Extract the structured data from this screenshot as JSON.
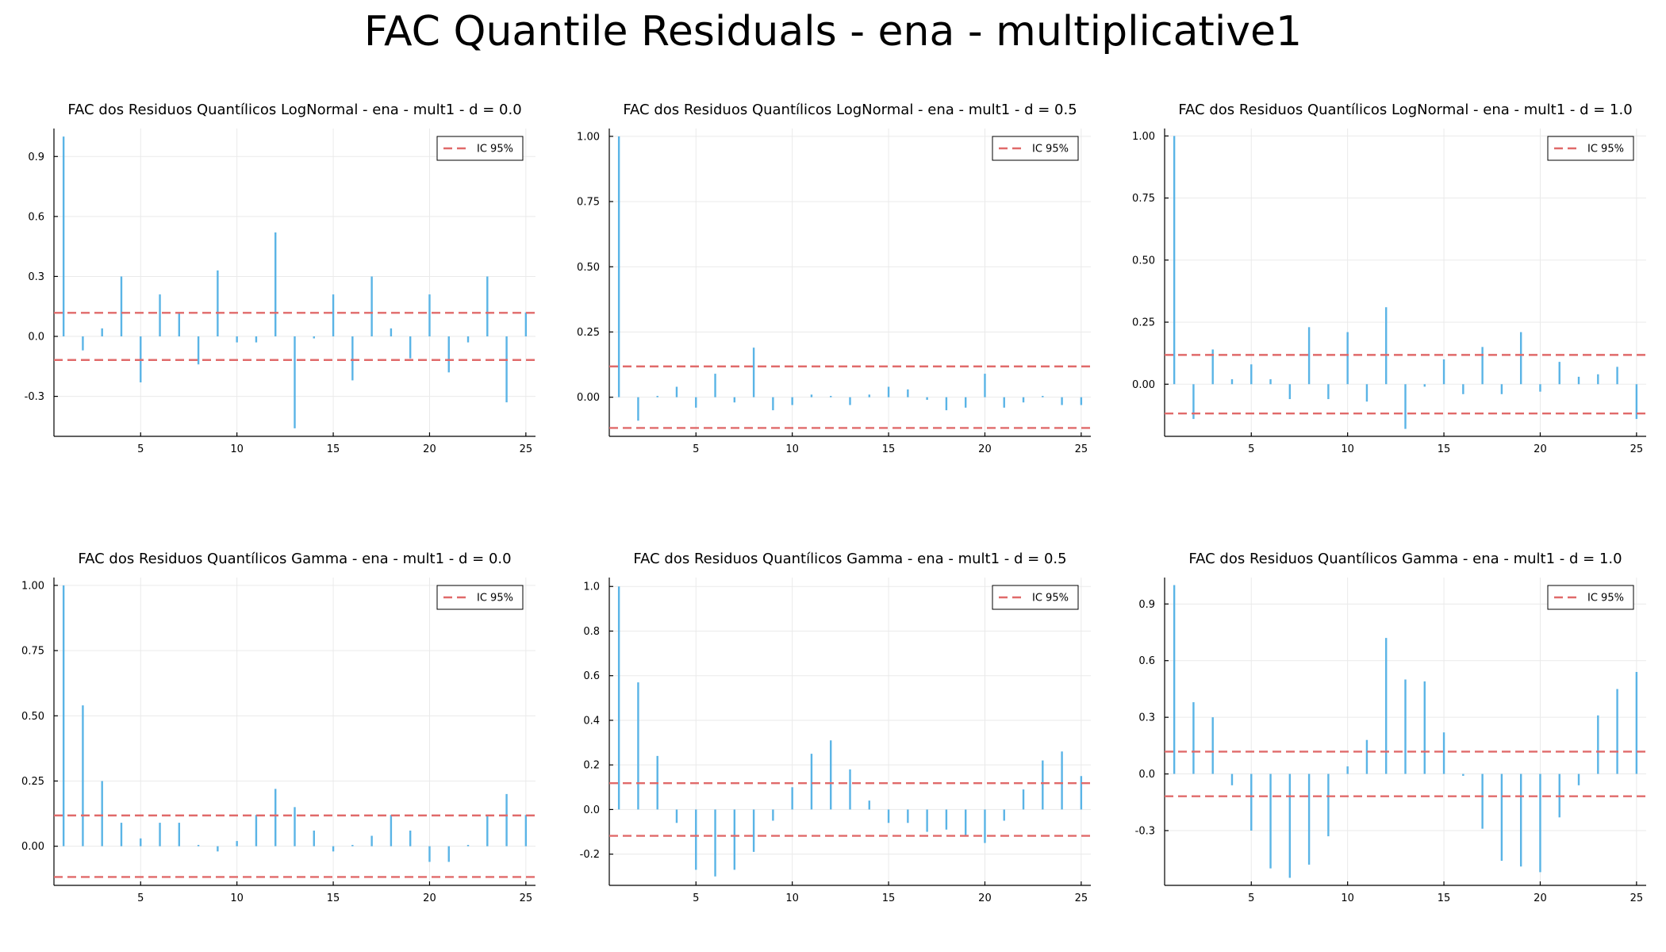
{
  "title": "FAC Quantile Residuals - ena - multiplicative1",
  "chart_data": [
    {
      "type": "bar",
      "title": "FAC dos Residuos Quantílicos LogNormal - ena - mult1 - d = 0.0",
      "legend": "IC 95%",
      "legend_position": "top-right",
      "x": [
        1,
        2,
        3,
        4,
        5,
        6,
        7,
        8,
        9,
        10,
        11,
        12,
        13,
        14,
        15,
        16,
        17,
        18,
        19,
        20,
        21,
        22,
        23,
        24,
        25
      ],
      "values": [
        1.0,
        -0.07,
        0.04,
        0.3,
        -0.23,
        0.21,
        0.12,
        -0.14,
        0.33,
        -0.03,
        -0.03,
        0.52,
        -0.46,
        -0.01,
        0.21,
        -0.22,
        0.3,
        0.04,
        -0.11,
        0.21,
        -0.18,
        -0.03,
        0.3,
        -0.33,
        0.12
      ],
      "ci": 0.118,
      "ylim": [
        -0.5,
        1.04
      ],
      "yticks": [
        -0.3,
        0.0,
        0.3,
        0.6,
        0.9
      ],
      "ytick_labels": [
        "-0.3",
        "0.0",
        "0.3",
        "0.6",
        "0.9"
      ],
      "xlim": [
        0.5,
        25.5
      ],
      "xticks": [
        5,
        10,
        15,
        20,
        25
      ]
    },
    {
      "type": "bar",
      "title": "FAC dos Residuos Quantílicos LogNormal - ena - mult1 - d = 0.5",
      "legend": "IC 95%",
      "legend_position": "top-right",
      "x": [
        1,
        2,
        3,
        4,
        5,
        6,
        7,
        8,
        9,
        10,
        11,
        12,
        13,
        14,
        15,
        16,
        17,
        18,
        19,
        20,
        21,
        22,
        23,
        24,
        25
      ],
      "values": [
        1.0,
        -0.09,
        0.005,
        0.04,
        -0.04,
        0.09,
        -0.02,
        0.19,
        -0.05,
        -0.03,
        0.01,
        0.005,
        -0.03,
        0.01,
        0.04,
        0.03,
        -0.01,
        -0.05,
        -0.04,
        0.09,
        -0.04,
        -0.02,
        0.005,
        -0.03,
        -0.03
      ],
      "ci": 0.118,
      "ylim": [
        -0.15,
        1.03
      ],
      "yticks": [
        0.0,
        0.25,
        0.5,
        0.75,
        1.0
      ],
      "ytick_labels": [
        "0.00",
        "0.25",
        "0.50",
        "0.75",
        "1.00"
      ],
      "xlim": [
        0.5,
        25.5
      ],
      "xticks": [
        5,
        10,
        15,
        20,
        25
      ]
    },
    {
      "type": "bar",
      "title": "FAC dos Residuos Quantílicos LogNormal - ena - mult1 - d = 1.0",
      "legend": "IC 95%",
      "legend_position": "top-right",
      "x": [
        1,
        2,
        3,
        4,
        5,
        6,
        7,
        8,
        9,
        10,
        11,
        12,
        13,
        14,
        15,
        16,
        17,
        18,
        19,
        20,
        21,
        22,
        23,
        24,
        25
      ],
      "values": [
        1.0,
        -0.14,
        0.14,
        0.02,
        0.08,
        0.02,
        -0.06,
        0.23,
        -0.06,
        0.21,
        -0.07,
        0.31,
        -0.18,
        -0.01,
        0.1,
        -0.04,
        0.15,
        -0.04,
        0.21,
        -0.03,
        0.09,
        0.03,
        0.04,
        0.07,
        -0.14
      ],
      "ci": 0.118,
      "ylim": [
        -0.21,
        1.03
      ],
      "yticks": [
        0.0,
        0.25,
        0.5,
        0.75,
        1.0
      ],
      "ytick_labels": [
        "0.00",
        "0.25",
        "0.50",
        "0.75",
        "1.00"
      ],
      "xlim": [
        0.5,
        25.5
      ],
      "xticks": [
        5,
        10,
        15,
        20,
        25
      ]
    },
    {
      "type": "bar",
      "title": "FAC dos Residuos Quantílicos Gamma - ena - mult1 - d = 0.0",
      "legend": "IC 95%",
      "legend_position": "top-right",
      "x": [
        1,
        2,
        3,
        4,
        5,
        6,
        7,
        8,
        9,
        10,
        11,
        12,
        13,
        14,
        15,
        16,
        17,
        18,
        19,
        20,
        21,
        22,
        23,
        24,
        25
      ],
      "values": [
        1.0,
        0.54,
        0.25,
        0.09,
        0.03,
        0.09,
        0.09,
        0.005,
        -0.02,
        0.02,
        0.12,
        0.22,
        0.15,
        0.06,
        -0.02,
        0.005,
        0.04,
        0.12,
        0.06,
        -0.06,
        -0.06,
        0.005,
        0.12,
        0.2,
        0.12
      ],
      "ci": 0.118,
      "ylim": [
        -0.15,
        1.03
      ],
      "yticks": [
        0.0,
        0.25,
        0.5,
        0.75,
        1.0
      ],
      "ytick_labels": [
        "0.00",
        "0.25",
        "0.50",
        "0.75",
        "1.00"
      ],
      "xlim": [
        0.5,
        25.5
      ],
      "xticks": [
        5,
        10,
        15,
        20,
        25
      ]
    },
    {
      "type": "bar",
      "title": "FAC dos Residuos Quantílicos Gamma - ena - mult1 - d = 0.5",
      "legend": "IC 95%",
      "legend_position": "top-right",
      "x": [
        1,
        2,
        3,
        4,
        5,
        6,
        7,
        8,
        9,
        10,
        11,
        12,
        13,
        14,
        15,
        16,
        17,
        18,
        19,
        20,
        21,
        22,
        23,
        24,
        25
      ],
      "values": [
        1.0,
        0.57,
        0.24,
        -0.06,
        -0.27,
        -0.3,
        -0.27,
        -0.19,
        -0.05,
        0.1,
        0.25,
        0.31,
        0.18,
        0.04,
        -0.06,
        -0.06,
        -0.1,
        -0.09,
        -0.12,
        -0.15,
        -0.05,
        0.09,
        0.22,
        0.26,
        0.15
      ],
      "ci": 0.118,
      "ylim": [
        -0.34,
        1.04
      ],
      "yticks": [
        -0.2,
        0.0,
        0.2,
        0.4,
        0.6,
        0.8,
        1.0
      ],
      "ytick_labels": [
        "-0.2",
        "0.0",
        "0.2",
        "0.4",
        "0.6",
        "0.8",
        "1.0"
      ],
      "xlim": [
        0.5,
        25.5
      ],
      "xticks": [
        5,
        10,
        15,
        20,
        25
      ]
    },
    {
      "type": "bar",
      "title": "FAC dos Residuos Quantílicos Gamma - ena - mult1 - d = 1.0",
      "legend": "IC 95%",
      "legend_position": "top-right",
      "x": [
        1,
        2,
        3,
        4,
        5,
        6,
        7,
        8,
        9,
        10,
        11,
        12,
        13,
        14,
        15,
        16,
        17,
        18,
        19,
        20,
        21,
        22,
        23,
        24,
        25
      ],
      "values": [
        1.0,
        0.38,
        0.3,
        -0.06,
        -0.3,
        -0.5,
        -0.55,
        -0.48,
        -0.33,
        0.04,
        0.18,
        0.72,
        0.5,
        0.49,
        0.22,
        -0.01,
        -0.29,
        -0.46,
        -0.49,
        -0.52,
        -0.23,
        -0.06,
        0.31,
        0.45,
        0.54
      ],
      "ci": 0.118,
      "ylim": [
        -0.59,
        1.04
      ],
      "yticks": [
        -0.3,
        0.0,
        0.3,
        0.6,
        0.9
      ],
      "ytick_labels": [
        "-0.3",
        "0.0",
        "0.3",
        "0.6",
        "0.9"
      ],
      "xlim": [
        0.5,
        25.5
      ],
      "xticks": [
        5,
        10,
        15,
        20,
        25
      ]
    }
  ]
}
